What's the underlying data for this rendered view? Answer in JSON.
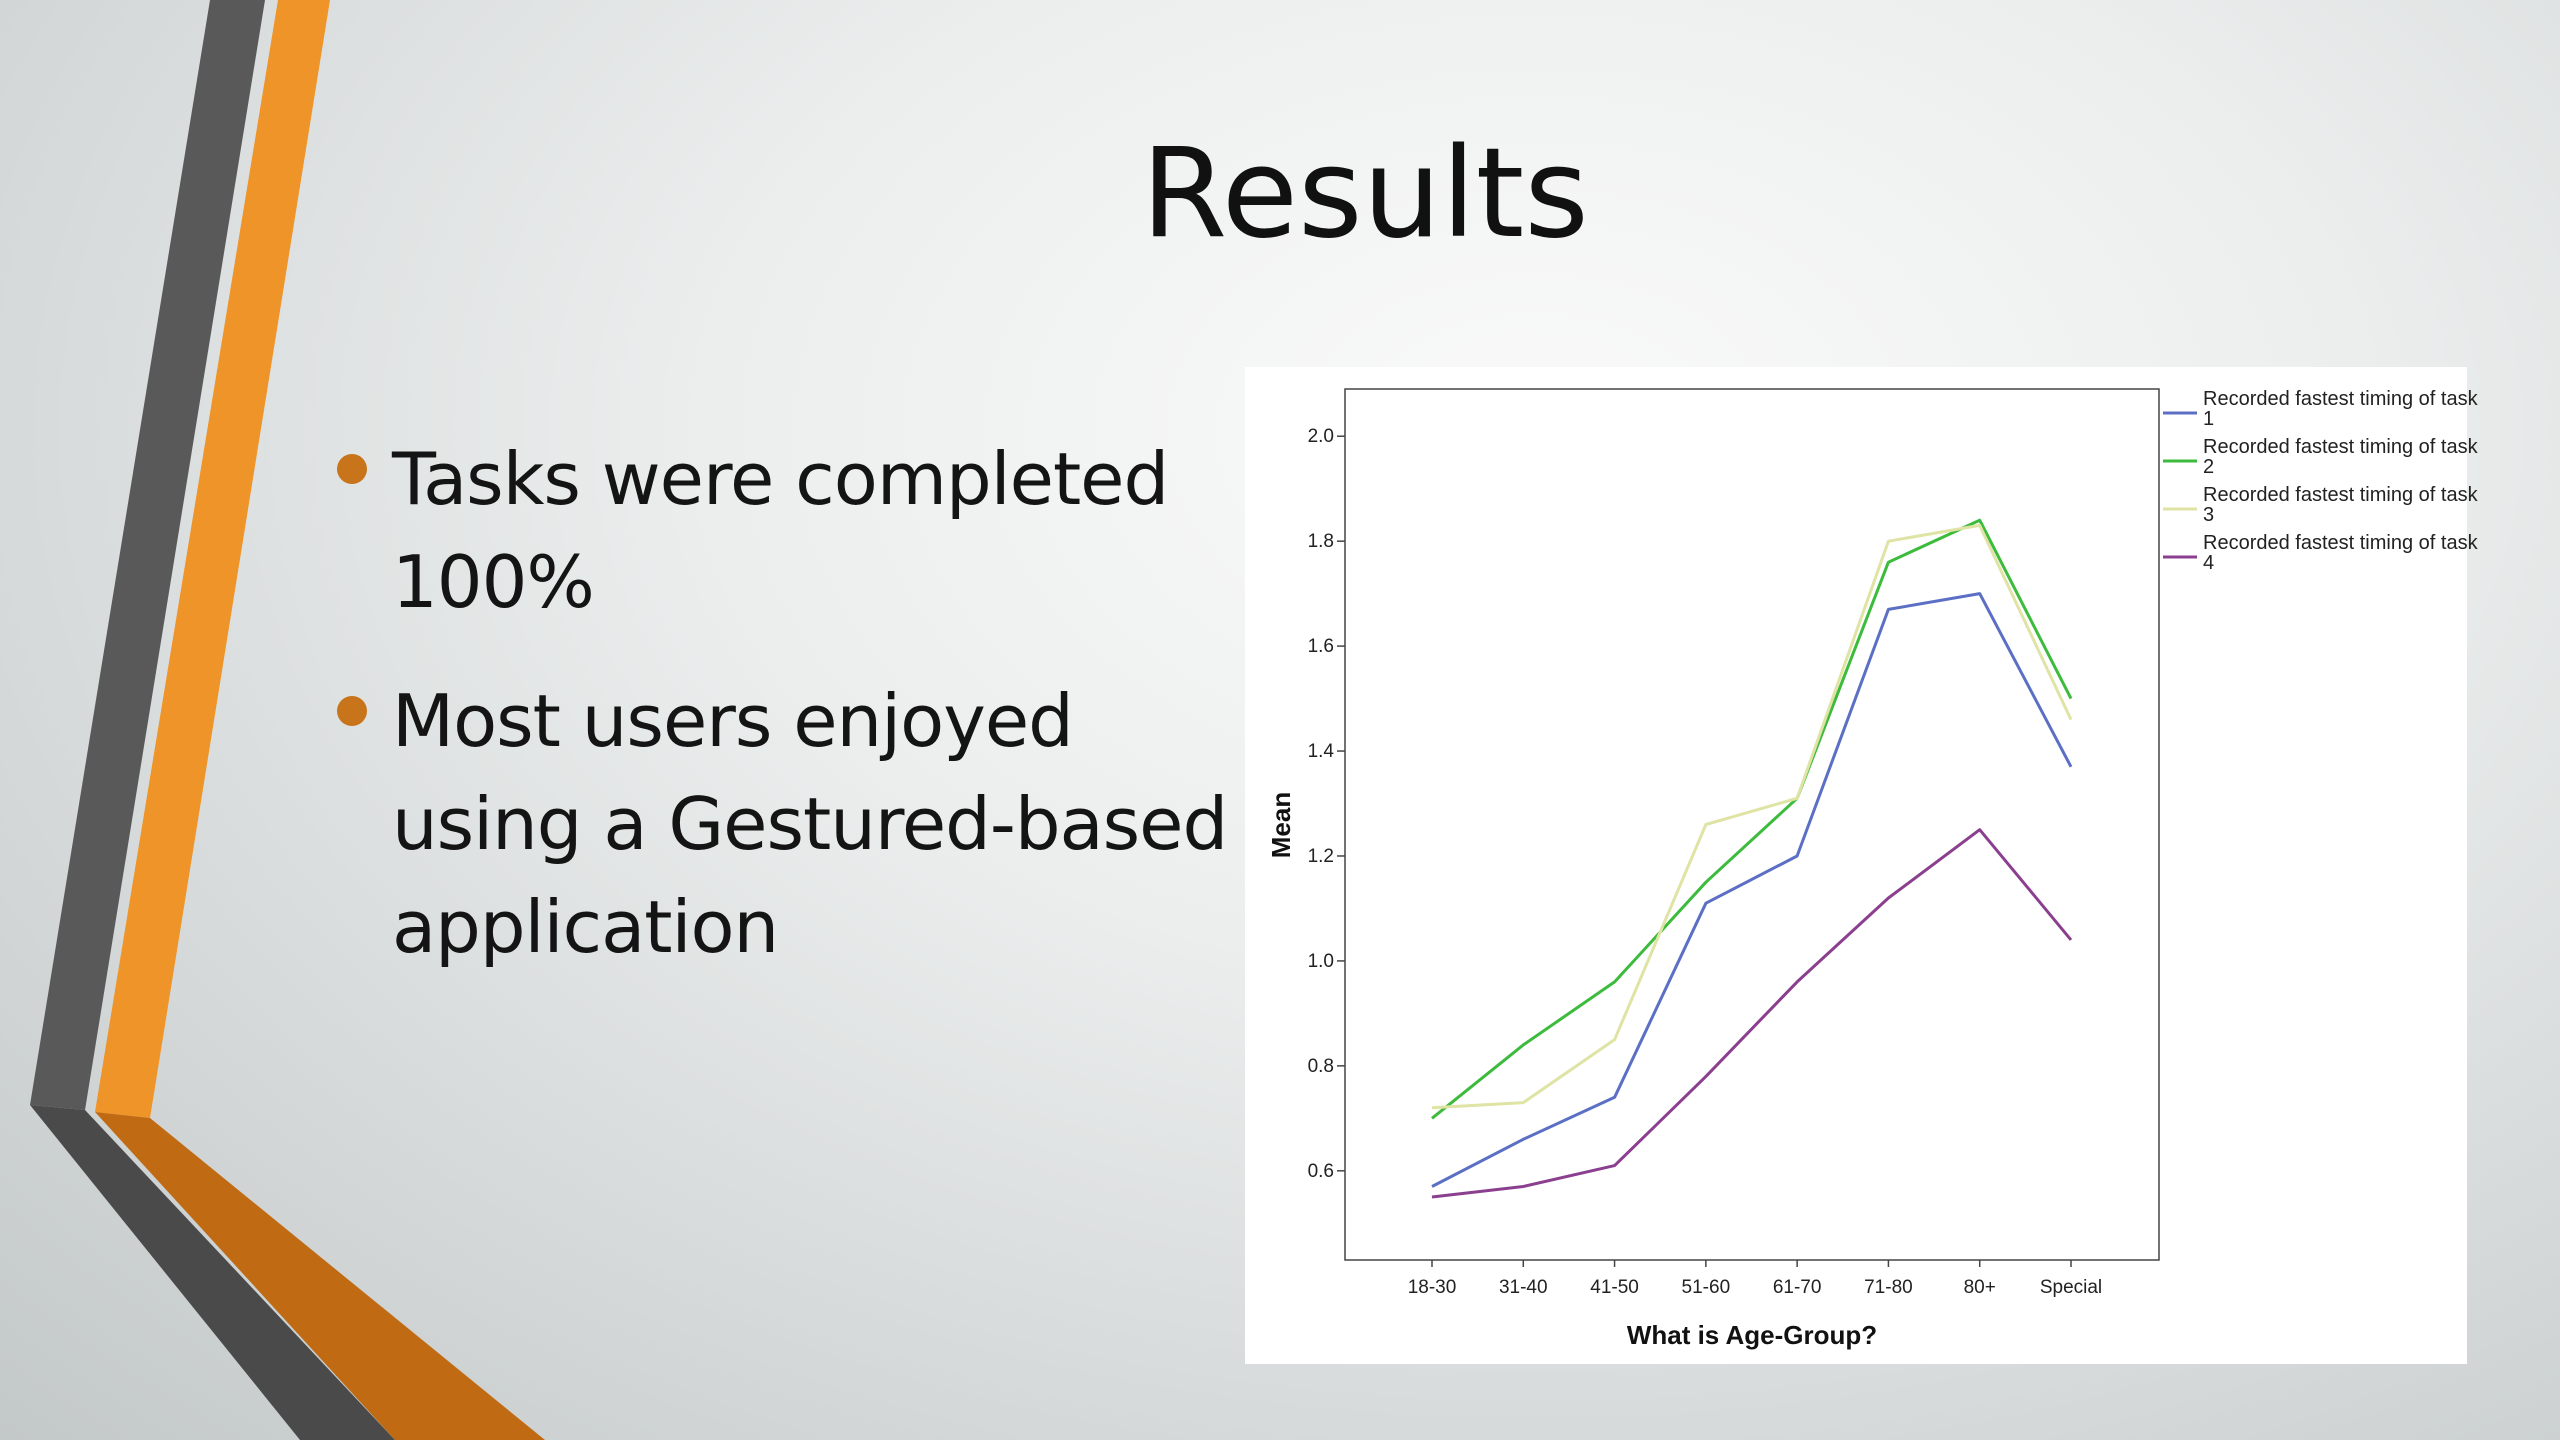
{
  "slide": {
    "title": "Results",
    "bullets": [
      "Tasks were completed 100%",
      "Most users enjoyed using a Gestured-based application"
    ],
    "accent_colors": {
      "orange": "#ee9428",
      "dark_orange": "#c06b14",
      "gray": "#595959",
      "bullet": "#c8741a"
    }
  },
  "chart_data": {
    "type": "line",
    "title": "",
    "xlabel": "What is Age-Group?",
    "ylabel": "Mean",
    "categories": [
      "18-30",
      "31-40",
      "41-50",
      "51-60",
      "61-70",
      "71-80",
      "80+",
      "Special"
    ],
    "ylim": [
      0.43,
      2.09
    ],
    "yticks": [
      0.6,
      0.8,
      1.0,
      1.2,
      1.4,
      1.6,
      1.8,
      2.0
    ],
    "ytick_labels": [
      "0.6",
      "0.8",
      "1.0",
      "1.2",
      "1.4",
      "1.6",
      "1.8",
      "2.0"
    ],
    "grid": false,
    "legend_position": "top-right, outside plot",
    "series": [
      {
        "name": "Recorded fastest timing of task 1",
        "color": "#5b6fc4",
        "values": [
          0.57,
          0.66,
          0.74,
          1.11,
          1.2,
          1.67,
          1.7,
          1.37
        ]
      },
      {
        "name": "Recorded fastest timing of task 2",
        "color": "#3cbb3c",
        "values": [
          0.7,
          0.84,
          0.96,
          1.15,
          1.31,
          1.76,
          1.84,
          1.5
        ]
      },
      {
        "name": "Recorded fastest timing of task 3",
        "color": "#dfe3a4",
        "values": [
          0.72,
          0.73,
          0.85,
          1.26,
          1.31,
          1.8,
          1.83,
          1.46
        ]
      },
      {
        "name": "Recorded fastest timing of task 4",
        "color": "#8b3f8f",
        "values": [
          0.55,
          0.57,
          0.61,
          0.78,
          0.96,
          1.12,
          1.25,
          1.04
        ]
      }
    ]
  }
}
